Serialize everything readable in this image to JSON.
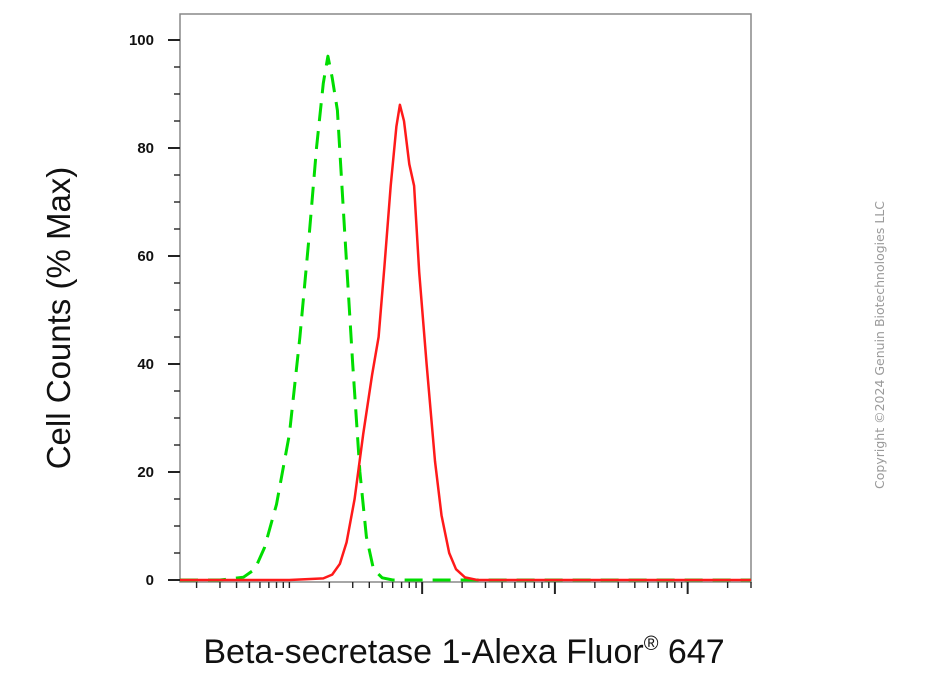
{
  "chart_data": {
    "type": "line",
    "xlabel": "Beta-secretase 1-Alexa Fluor",
    "xlabel_sup": "®",
    "xlabel_tail": " 647",
    "ylabel": "Cell Counts (% Max)",
    "x_scale": "log",
    "xlim": [
      15,
      300000
    ],
    "ylim": [
      0,
      100
    ],
    "yticks": [
      0,
      20,
      40,
      60,
      80,
      100
    ],
    "ytick_labels": [
      "0",
      "20",
      "40",
      "60",
      "80",
      "100"
    ],
    "grid": false,
    "series": [
      {
        "color": "#00dd00",
        "style": "dashed",
        "points": [
          [
            15,
            0
          ],
          [
            30,
            0
          ],
          [
            45,
            0.5
          ],
          [
            55,
            2
          ],
          [
            65,
            6
          ],
          [
            80,
            14
          ],
          [
            100,
            27
          ],
          [
            120,
            45
          ],
          [
            140,
            63
          ],
          [
            160,
            80
          ],
          [
            180,
            92
          ],
          [
            195,
            97
          ],
          [
            210,
            93
          ],
          [
            230,
            87
          ],
          [
            260,
            65
          ],
          [
            300,
            40
          ],
          [
            340,
            20
          ],
          [
            380,
            8
          ],
          [
            430,
            2
          ],
          [
            500,
            0.4
          ],
          [
            600,
            0
          ],
          [
            1000,
            0
          ],
          [
            300000,
            0
          ]
        ]
      },
      {
        "color": "#ff1a1a",
        "style": "solid",
        "points": [
          [
            15,
            0
          ],
          [
            100,
            0
          ],
          [
            180,
            0.3
          ],
          [
            210,
            1
          ],
          [
            240,
            3
          ],
          [
            270,
            7
          ],
          [
            310,
            15
          ],
          [
            360,
            27
          ],
          [
            420,
            38
          ],
          [
            470,
            45
          ],
          [
            520,
            58
          ],
          [
            580,
            73
          ],
          [
            640,
            84
          ],
          [
            680,
            88
          ],
          [
            730,
            85
          ],
          [
            800,
            77
          ],
          [
            870,
            73
          ],
          [
            950,
            57
          ],
          [
            1080,
            40
          ],
          [
            1250,
            22
          ],
          [
            1400,
            12
          ],
          [
            1600,
            5
          ],
          [
            1800,
            2
          ],
          [
            2100,
            0.5
          ],
          [
            2600,
            0
          ],
          [
            300000,
            0
          ]
        ]
      }
    ]
  },
  "watermark": "Copyright ©2024 Genuin Biotechnologies LLC"
}
